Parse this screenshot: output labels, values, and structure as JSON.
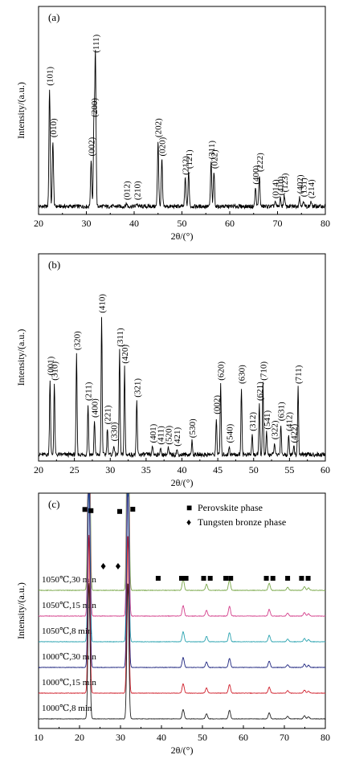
{
  "figure": {
    "panel_a_label": "(a)",
    "panel_b_label": "(b)",
    "panel_c_label": "(c)"
  },
  "chart_data": [
    {
      "type": "line",
      "panel": "a",
      "title": "",
      "xlabel": "2θ/(°)",
      "ylabel": "Intensity/(a.u.)",
      "xlim": [
        20,
        80
      ],
      "xticks": [
        20,
        30,
        40,
        50,
        60,
        70,
        80
      ],
      "grid": false,
      "peaks": [
        {
          "x": 22.3,
          "h": 0.75,
          "label": "(101)"
        },
        {
          "x": 23.0,
          "h": 0.42,
          "label": "(010)"
        },
        {
          "x": 31.0,
          "h": 0.3,
          "label": "(002)"
        },
        {
          "x": 31.6,
          "h": 0.55,
          "label": "(200)"
        },
        {
          "x": 31.9,
          "h": 0.96,
          "label": "(111)"
        },
        {
          "x": 38.4,
          "h": 0.02,
          "label": "(012)"
        },
        {
          "x": 40.6,
          "h": 0.02,
          "label": "(210)"
        },
        {
          "x": 45.0,
          "h": 0.42,
          "label": "(202)"
        },
        {
          "x": 45.8,
          "h": 0.3,
          "label": "(020)"
        },
        {
          "x": 50.7,
          "h": 0.18,
          "label": "(212)"
        },
        {
          "x": 51.4,
          "h": 0.22,
          "label": "(121)"
        },
        {
          "x": 56.1,
          "h": 0.28,
          "label": "(311)"
        },
        {
          "x": 56.7,
          "h": 0.22,
          "label": "(022)"
        },
        {
          "x": 65.4,
          "h": 0.12,
          "label": "(400)"
        },
        {
          "x": 66.2,
          "h": 0.2,
          "label": "(222)"
        },
        {
          "x": 69.5,
          "h": 0.03,
          "label": "(014)"
        },
        {
          "x": 70.6,
          "h": 0.05,
          "label": "(410)"
        },
        {
          "x": 71.4,
          "h": 0.07,
          "label": "(123)"
        },
        {
          "x": 74.6,
          "h": 0.06,
          "label": "(402)"
        },
        {
          "x": 75.4,
          "h": 0.04,
          "label": "(131)"
        },
        {
          "x": 77.0,
          "h": 0.03,
          "label": "(214)"
        }
      ]
    },
    {
      "type": "line",
      "panel": "b",
      "title": "",
      "xlabel": "2θ/(°)",
      "ylabel": "Intensity/(a.u.)",
      "xlim": [
        20,
        60
      ],
      "xticks": [
        20,
        25,
        30,
        35,
        40,
        45,
        50,
        55,
        60
      ],
      "grid": false,
      "peaks": [
        {
          "x": 21.6,
          "h": 0.45,
          "label": "(001)"
        },
        {
          "x": 22.2,
          "h": 0.42,
          "label": "(310)"
        },
        {
          "x": 25.3,
          "h": 0.6,
          "label": "(320)"
        },
        {
          "x": 26.9,
          "h": 0.3,
          "label": "(211)"
        },
        {
          "x": 27.8,
          "h": 0.2,
          "label": "(400)"
        },
        {
          "x": 28.8,
          "h": 0.82,
          "label": "(410)"
        },
        {
          "x": 29.6,
          "h": 0.16,
          "label": "(221)"
        },
        {
          "x": 30.5,
          "h": 0.06,
          "label": "(330)"
        },
        {
          "x": 31.3,
          "h": 0.62,
          "label": "(311)"
        },
        {
          "x": 32.0,
          "h": 0.52,
          "label": "(420)"
        },
        {
          "x": 33.7,
          "h": 0.32,
          "label": "(321)"
        },
        {
          "x": 35.9,
          "h": 0.05,
          "label": "(401)"
        },
        {
          "x": 37.0,
          "h": 0.04,
          "label": "(411)"
        },
        {
          "x": 38.1,
          "h": 0.04,
          "label": "(520)"
        },
        {
          "x": 39.3,
          "h": 0.03,
          "label": "(421)"
        },
        {
          "x": 41.4,
          "h": 0.08,
          "label": "(530)"
        },
        {
          "x": 44.8,
          "h": 0.22,
          "label": "(002)"
        },
        {
          "x": 45.4,
          "h": 0.42,
          "label": "(620)"
        },
        {
          "x": 46.6,
          "h": 0.05,
          "label": "(540)"
        },
        {
          "x": 48.3,
          "h": 0.4,
          "label": "(630)"
        },
        {
          "x": 49.8,
          "h": 0.12,
          "label": "(312)"
        },
        {
          "x": 50.8,
          "h": 0.3,
          "label": "(621)"
        },
        {
          "x": 51.3,
          "h": 0.42,
          "label": "(710)"
        },
        {
          "x": 51.8,
          "h": 0.13,
          "label": "(541)"
        },
        {
          "x": 52.9,
          "h": 0.07,
          "label": "(322)"
        },
        {
          "x": 53.8,
          "h": 0.18,
          "label": "(631)"
        },
        {
          "x": 54.9,
          "h": 0.12,
          "label": "(412)"
        },
        {
          "x": 55.6,
          "h": 0.05,
          "label": "(422)"
        },
        {
          "x": 56.2,
          "h": 0.4,
          "label": "(711)"
        }
      ]
    },
    {
      "type": "line",
      "panel": "c",
      "title": "",
      "xlabel": "2θ/(°)",
      "ylabel": "Intensity/(a.u.)",
      "xlim": [
        10,
        80
      ],
      "xticks": [
        10,
        20,
        30,
        40,
        50,
        60,
        70,
        80
      ],
      "grid": false,
      "legend": [
        {
          "marker": "■",
          "text": "Perovskite phase"
        },
        {
          "marker": "♦",
          "text": "Tungsten bronze phase"
        }
      ],
      "legend_position": "top-right",
      "series": [
        {
          "name": "1050℃,30 min",
          "color": "#7aa84a",
          "peak_scale": 1.0
        },
        {
          "name": "1050℃,15 min",
          "color": "#d4408c",
          "peak_scale": 0.95
        },
        {
          "name": "1050℃,8 min",
          "color": "#2aa3b0",
          "peak_scale": 0.9
        },
        {
          "name": "1000℃,30 min",
          "color": "#1c237e",
          "peak_scale": 0.9
        },
        {
          "name": "1000℃,15 min",
          "color": "#d0202c",
          "peak_scale": 0.85
        },
        {
          "name": "1000℃,8 min",
          "color": "#222222",
          "peak_scale": 0.85
        }
      ],
      "peaks": [
        {
          "x": 22.3,
          "h": 1.0
        },
        {
          "x": 31.8,
          "h": 1.0
        },
        {
          "x": 45.3,
          "h": 0.55
        },
        {
          "x": 51.0,
          "h": 0.3
        },
        {
          "x": 56.6,
          "h": 0.5
        },
        {
          "x": 66.3,
          "h": 0.35
        },
        {
          "x": 70.8,
          "h": 0.15
        },
        {
          "x": 74.9,
          "h": 0.18
        },
        {
          "x": 75.9,
          "h": 0.12
        }
      ],
      "perovskite_markers": [
        21.3,
        22.8,
        29.8,
        33.0,
        39.2,
        44.9,
        46.0,
        50.3,
        51.9,
        55.7,
        56.9,
        65.6,
        67.2,
        70.8,
        74.2,
        75.8
      ],
      "tungsten_bronze_markers": [
        25.8,
        29.4
      ]
    }
  ]
}
